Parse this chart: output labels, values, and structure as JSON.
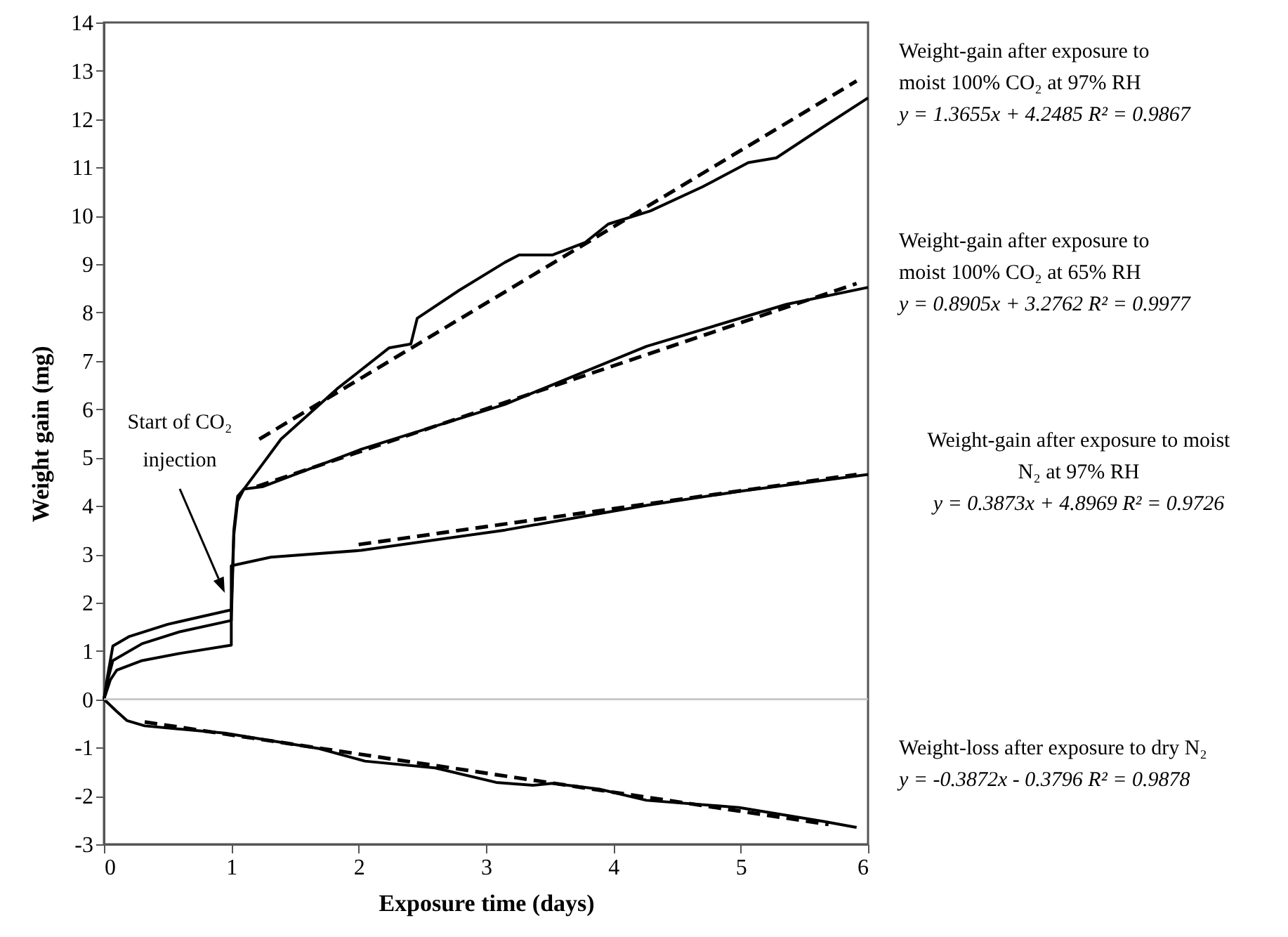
{
  "chart_data": {
    "type": "line",
    "xlabel": "Exposure time (days)",
    "ylabel": "Weight gain (mg)",
    "xlim": [
      0,
      6
    ],
    "ylim": [
      -3,
      14
    ],
    "xticks": [
      0,
      1,
      2,
      3,
      4,
      5,
      6
    ],
    "yticks": [
      -3,
      -2,
      -1,
      0,
      1,
      2,
      3,
      4,
      5,
      6,
      7,
      8,
      9,
      10,
      11,
      12,
      13,
      14
    ],
    "grid": false,
    "line_style": "solid",
    "series": [
      {
        "color": "#000000",
        "x": [
          0,
          0.03,
          0.07,
          0.2,
          0.5,
          0.75,
          1.0,
          1.02,
          1.05,
          1.1,
          1.25,
          1.39,
          1.83,
          2.24,
          2.41,
          2.46,
          2.79,
          3.15,
          3.26,
          3.52,
          3.78,
          3.96,
          4.29,
          4.7,
          5.06,
          5.28,
          5.66,
          6.0
        ],
        "values": [
          0,
          0.5,
          1.1,
          1.3,
          1.55,
          1.7,
          1.85,
          3.5,
          4.2,
          4.35,
          4.88,
          5.38,
          6.42,
          7.27,
          7.35,
          7.88,
          8.46,
          9.04,
          9.19,
          9.19,
          9.45,
          9.83,
          10.1,
          10.6,
          11.1,
          11.2,
          11.86,
          12.44
        ]
      },
      {
        "color": "#000000",
        "x": [
          0,
          0.03,
          0.07,
          0.3,
          0.6,
          1.0,
          1.02,
          1.05,
          1.1,
          1.25,
          2.02,
          3.15,
          3.37,
          4.26,
          5.36,
          6.0
        ],
        "values": [
          0,
          0.4,
          0.8,
          1.15,
          1.4,
          1.63,
          3.4,
          4.1,
          4.35,
          4.4,
          5.17,
          6.1,
          6.34,
          7.3,
          8.17,
          8.52
        ]
      },
      {
        "color": "#000000",
        "x": [
          0,
          0.05,
          0.1,
          0.3,
          0.6,
          1.0,
          1.0,
          1.31,
          2.02,
          3.15,
          4.26,
          4.99,
          6.0
        ],
        "values": [
          0,
          0.4,
          0.6,
          0.8,
          0.95,
          1.12,
          2.76,
          2.94,
          3.08,
          3.5,
          4.01,
          4.3,
          4.65
        ]
      },
      {
        "color": "#000000",
        "x": [
          0,
          0.1,
          0.18,
          0.32,
          0.95,
          1.69,
          2.05,
          2.6,
          3.08,
          3.37,
          3.52,
          3.89,
          4.26,
          4.99,
          5.66,
          5.91
        ],
        "values": [
          0,
          -0.25,
          -0.44,
          -0.55,
          -0.7,
          -1.02,
          -1.28,
          -1.42,
          -1.72,
          -1.78,
          -1.74,
          -1.86,
          -2.09,
          -2.24,
          -2.53,
          -2.65
        ]
      },
      {
        "color": "#000000",
        "line_style": "dashed",
        "x": [
          1.22,
          5.91
        ],
        "values": [
          5.38,
          12.79
        ]
      },
      {
        "color": "#000000",
        "line_style": "dashed",
        "x": [
          1.2,
          5.91
        ],
        "values": [
          4.4,
          8.6
        ]
      },
      {
        "color": "#000000",
        "line_style": "dashed",
        "x": [
          2.0,
          5.91
        ],
        "values": [
          3.2,
          4.65
        ]
      },
      {
        "color": "#000000",
        "line_style": "dashed",
        "x": [
          0.32,
          5.69
        ],
        "values": [
          -0.47,
          -2.59
        ]
      }
    ],
    "ref_lines": [
      {
        "axis": "y",
        "value": 0,
        "color": "#c0c0c0"
      }
    ],
    "annotations": [
      "Start of CO₂\ninjection",
      "Weight-gain after exposure to\nmoist 100% CO₂ at 97% RH\ny = 1.3655x + 4.2485  R² = 0.9867",
      "Weight-gain after exposure to\nmoist 100% CO₂ at 65% RH\ny = 0.8905x + 3.2762  R² = 0.9977",
      "Weight-gain after exposure to moist\nN₂ at 97% RH\ny = 0.3873x + 4.8969 R² = 0.9726",
      "Weight-loss after exposure to dry N₂\ny = -0.3872x - 0.3796  R² = 0.9878"
    ]
  }
}
